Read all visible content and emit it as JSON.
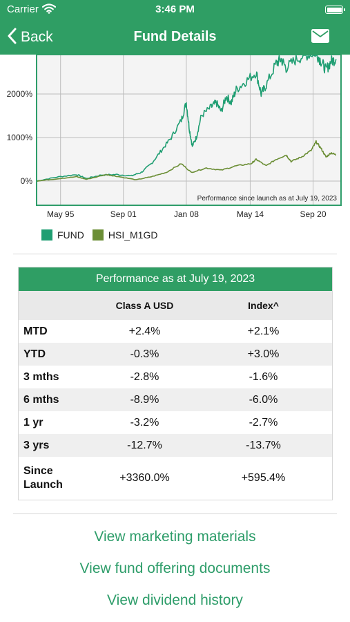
{
  "status_bar": {
    "carrier": "Carrier",
    "time": "3:46 PM"
  },
  "nav": {
    "back_label": "Back",
    "title": "Fund Details"
  },
  "chart_data": {
    "type": "line",
    "x_ticks": [
      "May 95",
      "Sep 01",
      "Jan 08",
      "May 14",
      "Sep 20"
    ],
    "y_ticks": [
      "0%",
      "1000%",
      "2000%"
    ],
    "ylim": [
      -200,
      2900
    ],
    "annotation": "Performance since launch as at July 19, 2023",
    "grid": true,
    "legend_position": "bottom-left",
    "series": [
      {
        "name": "FUND",
        "color": "#1f9e72",
        "points": [
          [
            1993.0,
            0
          ],
          [
            1995.0,
            90
          ],
          [
            1997.0,
            150
          ],
          [
            1998.0,
            60
          ],
          [
            1999.5,
            140
          ],
          [
            2001.0,
            150
          ],
          [
            2002.5,
            120
          ],
          [
            2003.5,
            200
          ],
          [
            2004.5,
            400
          ],
          [
            2005.5,
            700
          ],
          [
            2006.5,
            1000
          ],
          [
            2007.5,
            1400
          ],
          [
            2008.0,
            1800
          ],
          [
            2008.3,
            1200
          ],
          [
            2008.6,
            800
          ],
          [
            2009.0,
            1000
          ],
          [
            2009.5,
            1500
          ],
          [
            2010.5,
            1700
          ],
          [
            2011.0,
            1800
          ],
          [
            2011.5,
            1600
          ],
          [
            2012.0,
            1950
          ],
          [
            2012.5,
            1800
          ],
          [
            2013.0,
            2100
          ],
          [
            2014.0,
            2300
          ],
          [
            2015.0,
            2500
          ],
          [
            2015.5,
            2000
          ],
          [
            2016.0,
            2200
          ],
          [
            2017.0,
            2700
          ],
          [
            2017.5,
            2800
          ],
          [
            2018.0,
            2600
          ],
          [
            2019.0,
            2800
          ],
          [
            2020.0,
            2900
          ],
          [
            2021.0,
            2950
          ],
          [
            2021.5,
            2750
          ],
          [
            2022.0,
            2550
          ],
          [
            2022.5,
            2750
          ],
          [
            2023.0,
            2800
          ]
        ]
      },
      {
        "name": "HSI_M1GD",
        "color": "#6b8e35",
        "points": [
          [
            1993.0,
            0
          ],
          [
            1995.0,
            50
          ],
          [
            1997.0,
            100
          ],
          [
            1998.0,
            40
          ],
          [
            2000.0,
            150
          ],
          [
            2001.0,
            110
          ],
          [
            2003.0,
            30
          ],
          [
            2004.5,
            100
          ],
          [
            2006.0,
            200
          ],
          [
            2007.5,
            400
          ],
          [
            2008.5,
            200
          ],
          [
            2010.0,
            300
          ],
          [
            2011.5,
            250
          ],
          [
            2013.0,
            350
          ],
          [
            2014.5,
            400
          ],
          [
            2015.0,
            500
          ],
          [
            2016.0,
            350
          ],
          [
            2017.0,
            500
          ],
          [
            2018.0,
            600
          ],
          [
            2018.5,
            450
          ],
          [
            2019.5,
            550
          ],
          [
            2020.5,
            700
          ],
          [
            2021.0,
            900
          ],
          [
            2021.5,
            750
          ],
          [
            2022.0,
            550
          ],
          [
            2022.5,
            650
          ],
          [
            2023.0,
            600
          ]
        ]
      }
    ],
    "x_tick_values": [
      1995.4,
      2001.7,
      2008.0,
      2014.4,
      2020.7
    ],
    "xlim": [
      1993.0,
      2023.5
    ]
  },
  "legend": [
    {
      "label": "FUND",
      "color": "#1f9e72"
    },
    {
      "label": "HSI_M1GD",
      "color": "#6b8e35"
    }
  ],
  "performance": {
    "title": "Performance as at July 19, 2023",
    "col1": "Class A USD",
    "col2": "Index^",
    "rows": [
      {
        "label": "MTD",
        "fund": "+2.4%",
        "index": "+2.1%"
      },
      {
        "label": "YTD",
        "fund": "-0.3%",
        "index": "+3.0%"
      },
      {
        "label": "3 mths",
        "fund": "-2.8%",
        "index": "-1.6%"
      },
      {
        "label": "6 mths",
        "fund": "-8.9%",
        "index": "-6.0%"
      },
      {
        "label": "1 yr",
        "fund": "-3.2%",
        "index": "-2.7%"
      },
      {
        "label": "3 yrs",
        "fund": "-12.7%",
        "index": "-13.7%"
      },
      {
        "label_line1": "Since",
        "label_line2": "Launch",
        "fund": "+3360.0%",
        "index": "+595.4%"
      }
    ]
  },
  "links": {
    "marketing": "View marketing materials",
    "offering": "View fund offering documents",
    "dividend": "View dividend history"
  },
  "colors": {
    "brand": "#2f9e64",
    "link": "#2e9d6a"
  }
}
